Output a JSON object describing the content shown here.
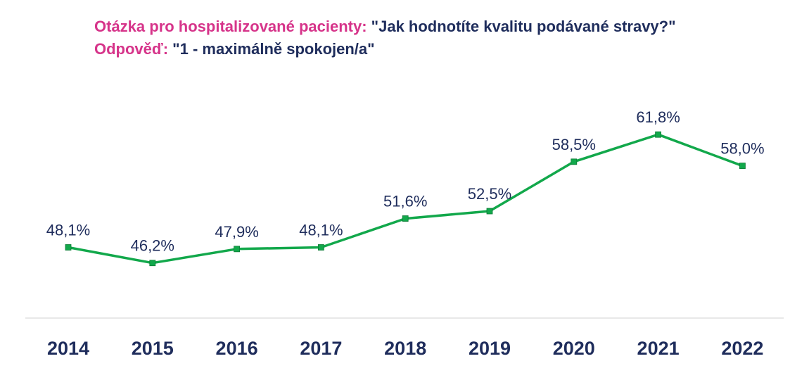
{
  "header": {
    "line1_label": "Otázka pro hospitalizované pacienty:",
    "line1_text": "\"Jak hodnotíte kvalitu podávané stravy?\"",
    "line2_label": "Odpověď:",
    "line2_text": "\"1 - maximálně spokojen/a\""
  },
  "chart_data": {
    "type": "line",
    "categories": [
      "2014",
      "2015",
      "2016",
      "2017",
      "2018",
      "2019",
      "2020",
      "2021",
      "2022"
    ],
    "values": [
      48.1,
      46.2,
      47.9,
      48.1,
      51.6,
      52.5,
      58.5,
      61.8,
      58.0
    ],
    "value_labels": [
      "48,1%",
      "46,2%",
      "47,9%",
      "48,1%",
      "51,6%",
      "52,5%",
      "58,5%",
      "61,8%",
      "58,0%"
    ],
    "xlabel": "",
    "ylabel": "",
    "grid": false,
    "legend": "none",
    "line_color": "#12a84b",
    "marker_color": "#12a84b",
    "axis_color": "#d9d9d9"
  }
}
